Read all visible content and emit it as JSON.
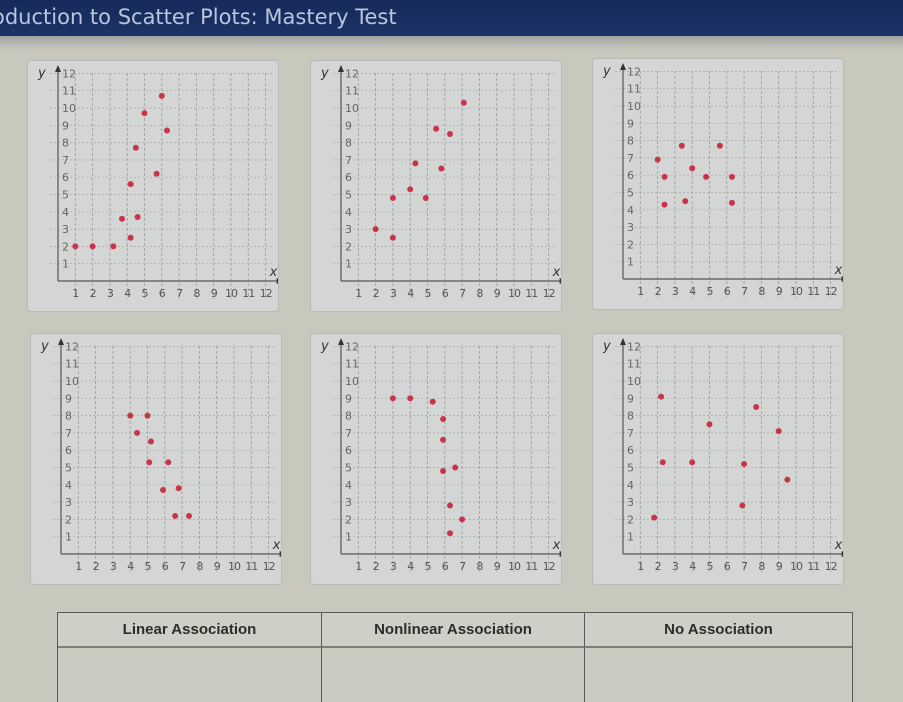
{
  "header": {
    "title": "oduction to Scatter Plots: Mastery Test"
  },
  "colors": {
    "header_bg": "#1a2e5e",
    "header_text": "#b9c6de",
    "page_bg": "#c9c8bd",
    "graph_bg": "#d4d6d6",
    "point": "#c8354a"
  },
  "axis": {
    "x_label": "x",
    "y_label": "y",
    "x_ticks": [
      "1",
      "2",
      "3",
      "4",
      "5",
      "6",
      "7",
      "8",
      "9",
      "10",
      "11",
      "12"
    ],
    "y_ticks": [
      "1",
      "2",
      "3",
      "4",
      "5",
      "6",
      "7",
      "8",
      "9",
      "10",
      "11",
      "12"
    ]
  },
  "table": {
    "headers": [
      "Linear Association",
      "Nonlinear Association",
      "No Association"
    ]
  },
  "chart_data": [
    {
      "type": "scatter",
      "title": "",
      "xlabel": "x",
      "ylabel": "y",
      "xlim": [
        0,
        12
      ],
      "ylim": [
        0,
        12
      ],
      "grid": true,
      "points": [
        [
          1,
          2
        ],
        [
          2,
          2
        ],
        [
          3.2,
          2
        ],
        [
          3.7,
          3.6
        ],
        [
          4.2,
          2.5
        ],
        [
          4.6,
          3.7
        ],
        [
          4.2,
          5.6
        ],
        [
          4.5,
          7.7
        ],
        [
          5.7,
          6.2
        ],
        [
          5,
          9.7
        ],
        [
          6,
          10.7
        ],
        [
          6.3,
          8.7
        ]
      ]
    },
    {
      "type": "scatter",
      "title": "",
      "xlabel": "x",
      "ylabel": "y",
      "xlim": [
        0,
        12
      ],
      "ylim": [
        0,
        12
      ],
      "grid": true,
      "points": [
        [
          2,
          3
        ],
        [
          3,
          2.5
        ],
        [
          3,
          4.8
        ],
        [
          4,
          5.3
        ],
        [
          4.9,
          4.8
        ],
        [
          4.3,
          6.8
        ],
        [
          5.5,
          8.8
        ],
        [
          5.8,
          6.5
        ],
        [
          6.3,
          8.5
        ],
        [
          7.1,
          10.3
        ]
      ]
    },
    {
      "type": "scatter",
      "title": "",
      "xlabel": "x",
      "ylabel": "y",
      "xlim": [
        0,
        12
      ],
      "ylim": [
        0,
        12
      ],
      "grid": true,
      "points": [
        [
          2,
          6.9
        ],
        [
          2.4,
          5.9
        ],
        [
          2.4,
          4.3
        ],
        [
          3.4,
          7.7
        ],
        [
          3.6,
          4.5
        ],
        [
          4,
          6.4
        ],
        [
          4.8,
          5.9
        ],
        [
          5.6,
          7.7
        ],
        [
          6.3,
          5.9
        ],
        [
          6.3,
          4.4
        ]
      ]
    },
    {
      "type": "scatter",
      "title": "",
      "xlabel": "x",
      "ylabel": "y",
      "xlim": [
        0,
        12
      ],
      "ylim": [
        0,
        12
      ],
      "grid": true,
      "points": [
        [
          4,
          8
        ],
        [
          5,
          8
        ],
        [
          4.4,
          7
        ],
        [
          5.2,
          6.5
        ],
        [
          5.1,
          5.3
        ],
        [
          6.2,
          5.3
        ],
        [
          5.9,
          3.7
        ],
        [
          6.8,
          3.8
        ],
        [
          6.6,
          2.2
        ],
        [
          7.4,
          2.2
        ]
      ]
    },
    {
      "type": "scatter",
      "title": "",
      "xlabel": "x",
      "ylabel": "y",
      "xlim": [
        0,
        12
      ],
      "ylim": [
        0,
        12
      ],
      "grid": true,
      "points": [
        [
          3,
          9
        ],
        [
          4,
          9
        ],
        [
          5.3,
          8.8
        ],
        [
          5.9,
          7.8
        ],
        [
          5.9,
          6.6
        ],
        [
          5.9,
          4.8
        ],
        [
          6.6,
          5
        ],
        [
          6.3,
          2.8
        ],
        [
          7,
          2
        ],
        [
          6.3,
          1.2
        ]
      ]
    },
    {
      "type": "scatter",
      "title": "",
      "xlabel": "x",
      "ylabel": "y",
      "xlim": [
        0,
        12
      ],
      "ylim": [
        0,
        12
      ],
      "grid": true,
      "points": [
        [
          1.8,
          2.1
        ],
        [
          2.2,
          9.1
        ],
        [
          2.3,
          5.3
        ],
        [
          4,
          5.3
        ],
        [
          5,
          7.5
        ],
        [
          6.9,
          2.8
        ],
        [
          7,
          5.2
        ],
        [
          7.7,
          8.5
        ],
        [
          9,
          7.1
        ],
        [
          9.5,
          4.3
        ]
      ]
    }
  ]
}
